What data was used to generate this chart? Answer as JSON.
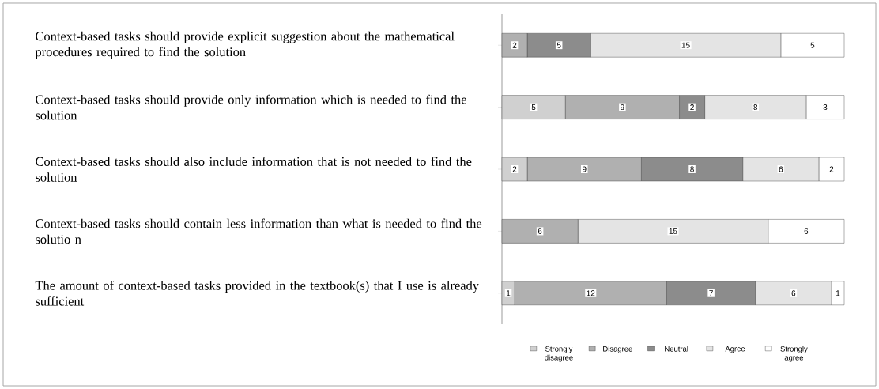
{
  "chart_data": {
    "type": "bar",
    "orientation": "horizontal",
    "stacked": true,
    "data_labels": true,
    "legend": "bottom",
    "categories": [
      "Context-based tasks should provide explicit suggestion about the mathematical procedures required to find the solution",
      "Context-based tasks should provide only information which is needed to find the solution",
      "Context-based tasks should also include information that is not needed to find the solution",
      "Context-based tasks should contain less information than what is needed to find the solutio n",
      "The amount of context-based tasks provided in the textbook(s) that I use is already sufficient"
    ],
    "series": [
      {
        "name": "Strongly disagree",
        "color": "#d0d0d0",
        "values": [
          null,
          5,
          2,
          null,
          1
        ]
      },
      {
        "name": "Disagree",
        "color": "#b0b0b0",
        "values": [
          2,
          9,
          9,
          6,
          12
        ]
      },
      {
        "name": "Neutral",
        "color": "#8c8c8c",
        "values": [
          5,
          2,
          8,
          null,
          7
        ]
      },
      {
        "name": "Agree",
        "color": "#e4e4e4",
        "values": [
          15,
          8,
          6,
          15,
          6
        ]
      },
      {
        "name": "Strongly agree",
        "color": "#ffffff",
        "values": [
          5,
          3,
          2,
          6,
          1
        ]
      }
    ]
  }
}
